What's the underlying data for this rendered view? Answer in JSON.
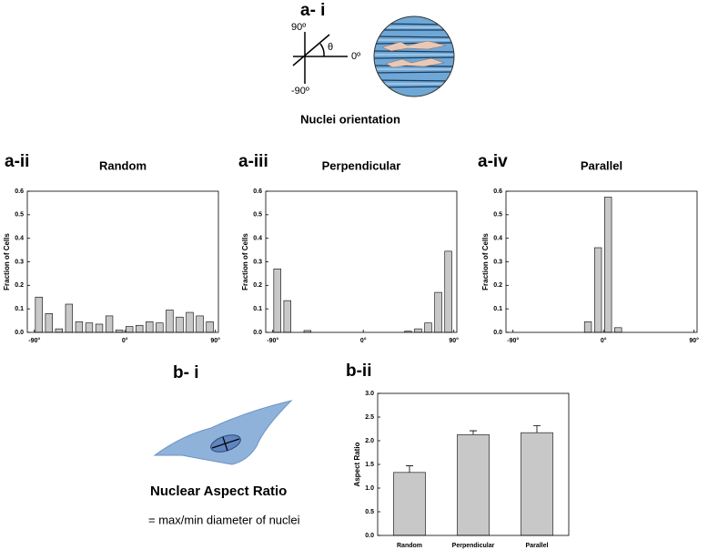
{
  "figure": {
    "orientation": {
      "panel_label": "a- i",
      "labels": [
        "90º",
        "0º",
        "-90º",
        "θ"
      ],
      "caption": "Nuclei orientation"
    },
    "aspect": {
      "panel_label": "b- i",
      "caption": "Nuclear Aspect Ratio",
      "definition": "= max/min diameter of nuclei"
    }
  },
  "chart_data": [
    {
      "type": "histogram",
      "panel_label": "a-ii",
      "title": "Random",
      "y_label": "Fraction of Cells",
      "bins": [
        -90,
        -80,
        -70,
        -60,
        -50,
        -40,
        -30,
        -20,
        -10,
        0,
        10,
        20,
        30,
        40,
        50,
        60,
        70,
        80,
        90
      ],
      "values": [
        0.15,
        0.08,
        0.015,
        0.12,
        0.045,
        0.04,
        0.035,
        0.07,
        0.01,
        0.025,
        0.03,
        0.045,
        0.04,
        0.095,
        0.065,
        0.085,
        0.07,
        0.045
      ],
      "color": "#c8c8c8",
      "xlim": [
        -97,
        93
      ],
      "xticks": [
        {
          "value": -90,
          "label": "-90°"
        },
        {
          "value": 0,
          "label": "0°"
        },
        {
          "value": 90,
          "label": "90°"
        }
      ],
      "ylim": [
        0,
        0.6
      ],
      "yticks": [
        {
          "value": 0,
          "label": "0.0"
        },
        0.1,
        0.2,
        0.3,
        0.4,
        0.5,
        0.6
      ]
    },
    {
      "type": "histogram",
      "panel_label": "a-iii",
      "title": "Perpendicular",
      "y_label": "Fraction of Cells",
      "bins": [
        -90,
        -80,
        -70,
        -60,
        -50,
        -40,
        -30,
        -20,
        -10,
        0,
        10,
        20,
        30,
        40,
        50,
        60,
        70,
        80,
        90
      ],
      "values": [
        0.27,
        0.135,
        0,
        0.008,
        0,
        0,
        0,
        0,
        0,
        0,
        0,
        0,
        0,
        0.005,
        0.015,
        0.04,
        0.17,
        0.345
      ],
      "color": "#c8c8c8",
      "xlim": [
        -97,
        93
      ],
      "xticks": [
        {
          "value": -90,
          "label": "-90°"
        },
        {
          "value": 0,
          "label": "0°"
        },
        {
          "value": 90,
          "label": "90°"
        }
      ],
      "ylim": [
        0,
        0.6
      ],
      "yticks": [
        {
          "value": 0,
          "label": "0.0"
        },
        0.1,
        0.2,
        0.3,
        0.4,
        0.5,
        0.6
      ]
    },
    {
      "type": "histogram",
      "panel_label": "a-iv",
      "title": "Parallel",
      "y_label": "Fraction of Cells",
      "bins": [
        -90,
        -80,
        -70,
        -60,
        -50,
        -40,
        -30,
        -20,
        -10,
        0,
        10,
        20,
        30,
        40,
        50,
        60,
        70,
        80,
        90
      ],
      "values": [
        0,
        0,
        0,
        0,
        0,
        0,
        0,
        0.045,
        0.36,
        0.575,
        0.02,
        0,
        0,
        0,
        0,
        0,
        0,
        0
      ],
      "color": "#c8c8c8",
      "xlim": [
        -97,
        93
      ],
      "xticks": [
        {
          "value": -90,
          "label": "-90°"
        },
        {
          "value": 0,
          "label": "0°"
        },
        {
          "value": 90,
          "label": "90°"
        }
      ],
      "ylim": [
        0,
        0.6
      ],
      "yticks": [
        {
          "value": 0,
          "label": "0.0"
        },
        0.1,
        0.2,
        0.3,
        0.4,
        0.5,
        0.6
      ]
    },
    {
      "type": "bar",
      "panel_label": "b-ii",
      "y_label": "Aspect Ratio",
      "categories": [
        "Random",
        "Perpendicular",
        "Parallel"
      ],
      "values": [
        1.33,
        2.13,
        2.17
      ],
      "errors": [
        0.14,
        0.08,
        0.15
      ],
      "color": "#c8c8c8",
      "ylim": [
        0,
        3.0
      ],
      "yticks": [
        {
          "value": 0,
          "label": "0.0"
        },
        0.5,
        {
          "value": 1,
          "label": "1.0"
        },
        1.5,
        {
          "value": 2,
          "label": "2.0"
        },
        2.5,
        {
          "value": 3,
          "label": "3.0"
        }
      ]
    }
  ]
}
